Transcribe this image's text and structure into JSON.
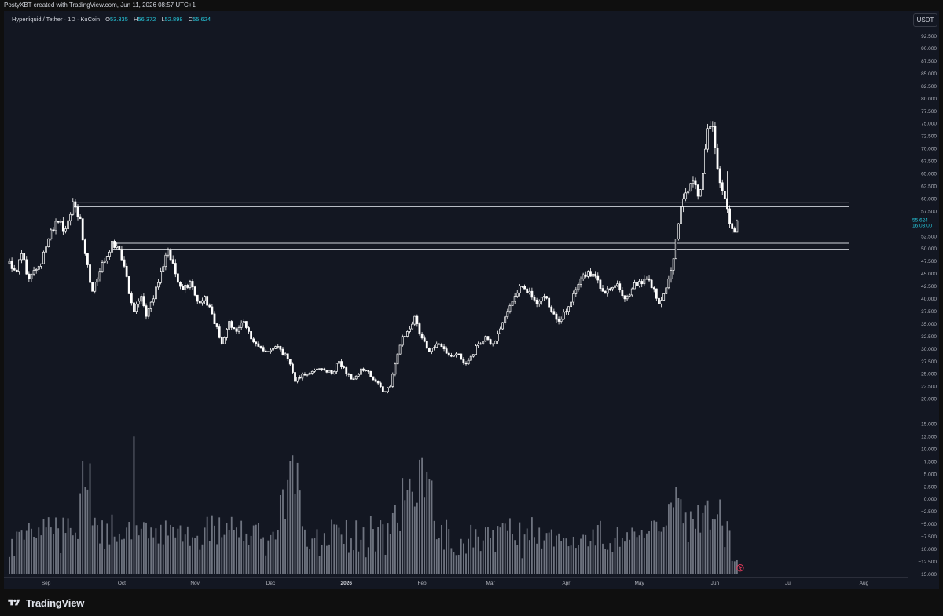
{
  "header": {
    "attribution": "PostyXBT created with TradingView.com, Jun 11, 2026 08:57 UTC+1"
  },
  "legend": {
    "symbol": "Hyperliquid / Tether · 1D · KuCoin",
    "open_label": "O",
    "open": "53.335",
    "high_label": "H",
    "high": "56.372",
    "low_label": "L",
    "low": "52.898",
    "close_label": "C",
    "close": "55.624"
  },
  "currency": "USDT",
  "last_price": {
    "value": "55.624",
    "countdown": "16:03:00"
  },
  "logo": {
    "text": "TradingView",
    "icon": "tradingview-logo-icon"
  },
  "colors": {
    "background": "#131722",
    "candle": "#ffffff",
    "accent": "#26c6da",
    "volume": "#6f7480",
    "level_line": "#d1d4dc",
    "grid_text": "#b2b5be"
  },
  "chart_data": {
    "type": "candlestick",
    "instrument": "Hyperliquid / Tether",
    "interval": "1D",
    "exchange": "KuCoin",
    "price_axis": {
      "ticks": [
        92.5,
        90,
        87.5,
        85,
        82.5,
        80,
        77.5,
        75,
        72.5,
        70,
        67.5,
        65,
        62.5,
        60,
        57.5,
        52.5,
        50,
        47.5,
        45,
        42.5,
        40,
        37.5,
        35,
        32.5,
        30,
        27.5,
        25,
        22.5,
        20,
        15,
        12.5,
        10,
        7.5,
        5,
        2.5,
        0,
        -2.5,
        -5,
        -7.5,
        -10,
        -12.5,
        -15
      ],
      "tick_labels": [
        "92.500",
        "90.000",
        "87.500",
        "85.000",
        "82.500",
        "80.000",
        "77.500",
        "75.000",
        "72.500",
        "70.000",
        "67.500",
        "65.000",
        "62.500",
        "60.000",
        "57.500",
        "52.500",
        "50.000",
        "47.500",
        "45.000",
        "42.500",
        "40.000",
        "37.500",
        "35.000",
        "32.500",
        "30.000",
        "27.500",
        "25.000",
        "22.500",
        "20.000",
        "15.000",
        "12.500",
        "10.000",
        "7.500",
        "5.000",
        "2.500",
        "0.000",
        "−2.500",
        "−5.000",
        "−7.500",
        "−10.000",
        "−12.500",
        "−15.000"
      ]
    },
    "time_axis": {
      "labels": [
        "Sep",
        "Oct",
        "Nov",
        "Dec",
        "2026",
        "Feb",
        "Mar",
        "Apr",
        "May",
        "Jun",
        "Jul",
        "Aug"
      ],
      "label_days": [
        15,
        46,
        76,
        107,
        138,
        169,
        197,
        228,
        258,
        289,
        319,
        350
      ]
    },
    "first_day": 0,
    "last_day": 298,
    "anchors": [
      [
        0,
        47.5
      ],
      [
        3,
        45.5
      ],
      [
        5,
        49
      ],
      [
        8,
        44
      ],
      [
        13,
        47
      ],
      [
        16,
        52
      ],
      [
        19,
        55.5
      ],
      [
        23,
        54
      ],
      [
        26,
        59.4
      ],
      [
        29,
        56
      ],
      [
        31,
        49
      ],
      [
        34,
        41.5
      ],
      [
        37,
        45.5
      ],
      [
        40,
        48.5
      ],
      [
        42,
        51.5
      ],
      [
        44,
        50.5
      ],
      [
        47,
        46.5
      ],
      [
        49,
        41
      ],
      [
        51,
        37.5
      ],
      [
        54,
        40.5
      ],
      [
        56,
        36.5
      ],
      [
        59,
        40
      ],
      [
        62,
        45.5
      ],
      [
        65,
        49.8
      ],
      [
        68,
        45
      ],
      [
        71,
        41.8
      ],
      [
        74,
        43.5
      ],
      [
        77,
        39.5
      ],
      [
        80,
        40.5
      ],
      [
        83,
        37
      ],
      [
        87,
        31
      ],
      [
        90,
        35.5
      ],
      [
        93,
        33.5
      ],
      [
        96,
        35.5
      ],
      [
        99,
        32
      ],
      [
        102,
        30.5
      ],
      [
        106,
        29.5
      ],
      [
        110,
        30.5
      ],
      [
        114,
        28
      ],
      [
        117,
        23.5
      ],
      [
        120,
        25
      ],
      [
        124,
        25.5
      ],
      [
        128,
        26
      ],
      [
        132,
        25
      ],
      [
        135,
        27.5
      ],
      [
        138,
        25
      ],
      [
        141,
        24
      ],
      [
        144,
        26
      ],
      [
        147,
        25.5
      ],
      [
        150,
        23.5
      ],
      [
        153,
        21.5
      ],
      [
        156,
        22.5
      ],
      [
        158,
        27
      ],
      [
        161,
        32.5
      ],
      [
        164,
        34
      ],
      [
        166,
        36.5
      ],
      [
        168,
        33
      ],
      [
        170,
        31.5
      ],
      [
        172,
        29.5
      ],
      [
        175,
        31
      ],
      [
        178,
        30
      ],
      [
        181,
        28.5
      ],
      [
        184,
        29
      ],
      [
        187,
        27
      ],
      [
        189,
        28.5
      ],
      [
        192,
        31
      ],
      [
        195,
        32.5
      ],
      [
        198,
        31
      ],
      [
        201,
        34
      ],
      [
        204,
        37.5
      ],
      [
        207,
        40.5
      ],
      [
        210,
        42.5
      ],
      [
        213,
        41.5
      ],
      [
        216,
        39
      ],
      [
        219,
        40.5
      ],
      [
        222,
        37.5
      ],
      [
        225,
        35.5
      ],
      [
        228,
        37.5
      ],
      [
        231,
        41
      ],
      [
        234,
        44
      ],
      [
        237,
        45.5
      ],
      [
        240,
        44.5
      ],
      [
        243,
        41.5
      ],
      [
        246,
        42
      ],
      [
        249,
        43
      ],
      [
        252,
        40
      ],
      [
        255,
        42
      ],
      [
        258,
        43.5
      ],
      [
        261,
        44
      ],
      [
        264,
        42
      ],
      [
        266,
        39
      ],
      [
        268,
        41
      ],
      [
        270,
        44
      ],
      [
        272,
        48
      ],
      [
        274,
        55
      ],
      [
        276,
        60
      ],
      [
        278,
        61.5
      ],
      [
        280,
        63.5
      ],
      [
        282,
        60.5
      ],
      [
        284,
        65
      ],
      [
        286,
        74
      ],
      [
        288,
        74.5
      ],
      [
        290,
        66
      ],
      [
        292,
        61.5
      ],
      [
        294,
        58
      ],
      [
        296,
        54
      ],
      [
        297,
        53.3
      ],
      [
        298,
        55.624
      ]
    ],
    "wicks": [
      {
        "day": 51,
        "low": 20.8
      },
      {
        "day": 42,
        "high": 51.8
      },
      {
        "day": 288,
        "high": 75.5
      },
      {
        "day": 294,
        "high": 65.5
      }
    ],
    "horizontal_levels": [
      {
        "price": 59.3,
        "from_day": 26
      },
      {
        "price": 58.4,
        "from_day": 26
      },
      {
        "price": 51.1,
        "from_day": 42
      },
      {
        "price": 49.9,
        "from_day": 42
      }
    ],
    "volume_spikes": [
      {
        "day": 51,
        "value": 12.5
      },
      {
        "day": 169,
        "value": 8.2
      }
    ],
    "volume_floor": -15
  }
}
